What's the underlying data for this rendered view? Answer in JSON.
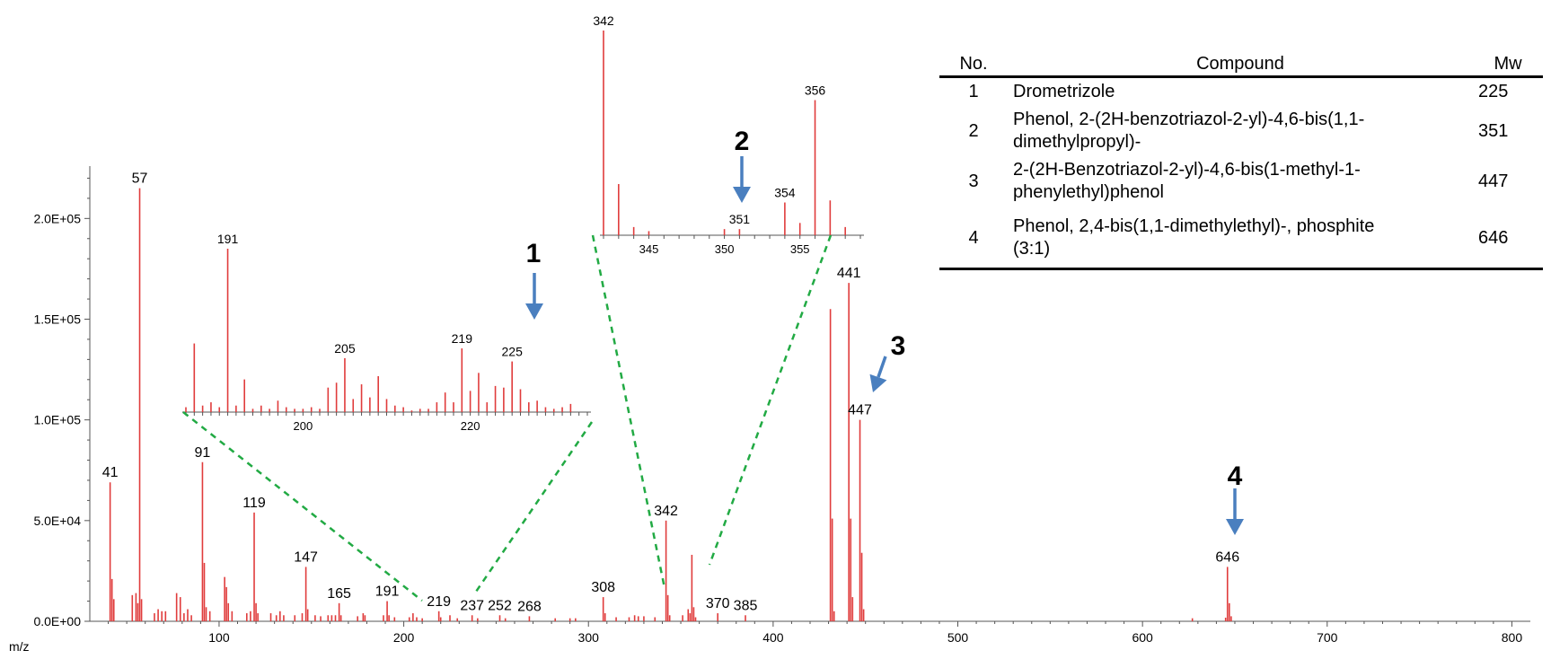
{
  "chart_data": [
    {
      "id": "main",
      "type": "bar",
      "xlabel": "m/z",
      "ylabel": "",
      "xlim": [
        30,
        810
      ],
      "ylim": [
        0,
        226000
      ],
      "x_ticks": [
        100,
        200,
        300,
        400,
        500,
        600,
        700,
        800
      ],
      "y_ticks": [
        0,
        50000,
        100000,
        150000,
        200000
      ],
      "y_tick_labels": [
        "0.0E+00",
        "5.0E+04",
        "1.0E+05",
        "1.5E+05",
        "2.0E+05"
      ],
      "color": "#e03c3c",
      "peaks": [
        [
          41,
          69000
        ],
        [
          42,
          21000
        ],
        [
          43,
          11000
        ],
        [
          53,
          13000
        ],
        [
          55,
          14000
        ],
        [
          56,
          9000
        ],
        [
          57,
          215000
        ],
        [
          58,
          11000
        ],
        [
          65,
          4000
        ],
        [
          67,
          6000
        ],
        [
          69,
          5000
        ],
        [
          71,
          5000
        ],
        [
          77,
          14000
        ],
        [
          79,
          12000
        ],
        [
          81,
          4000
        ],
        [
          83,
          6000
        ],
        [
          85,
          3000
        ],
        [
          91,
          79000
        ],
        [
          92,
          29000
        ],
        [
          93,
          7000
        ],
        [
          95,
          5000
        ],
        [
          103,
          22000
        ],
        [
          104,
          17000
        ],
        [
          105,
          9000
        ],
        [
          107,
          5000
        ],
        [
          115,
          4000
        ],
        [
          117,
          5000
        ],
        [
          119,
          54000
        ],
        [
          120,
          9000
        ],
        [
          121,
          4000
        ],
        [
          128,
          4000
        ],
        [
          131,
          3000
        ],
        [
          133,
          5000
        ],
        [
          135,
          3000
        ],
        [
          141,
          3000
        ],
        [
          145,
          4000
        ],
        [
          147,
          27000
        ],
        [
          148,
          6000
        ],
        [
          152,
          3000
        ],
        [
          155,
          2500
        ],
        [
          159,
          3000
        ],
        [
          161,
          3000
        ],
        [
          163,
          3000
        ],
        [
          165,
          9000
        ],
        [
          166,
          3000
        ],
        [
          175,
          2500
        ],
        [
          178,
          4000
        ],
        [
          179,
          3000
        ],
        [
          189,
          3000
        ],
        [
          191,
          10000
        ],
        [
          192,
          3000
        ],
        [
          195,
          2000
        ],
        [
          203,
          2000
        ],
        [
          205,
          4000
        ],
        [
          207,
          2000
        ],
        [
          210,
          1500
        ],
        [
          219,
          5000
        ],
        [
          220,
          2000
        ],
        [
          225,
          3000
        ],
        [
          229,
          1500
        ],
        [
          237,
          3000
        ],
        [
          240,
          1500
        ],
        [
          252,
          3000
        ],
        [
          255,
          1500
        ],
        [
          268,
          2500
        ],
        [
          282,
          1500
        ],
        [
          290,
          1500
        ],
        [
          293,
          1500
        ],
        [
          308,
          12000
        ],
        [
          309,
          4000
        ],
        [
          315,
          2000
        ],
        [
          322,
          2000
        ],
        [
          325,
          3000
        ],
        [
          327,
          2500
        ],
        [
          330,
          2500
        ],
        [
          336,
          2000
        ],
        [
          342,
          50000
        ],
        [
          343,
          13000
        ],
        [
          344,
          3000
        ],
        [
          351,
          3000
        ],
        [
          354,
          6000
        ],
        [
          355,
          4000
        ],
        [
          356,
          33000
        ],
        [
          357,
          7000
        ],
        [
          358,
          2000
        ],
        [
          370,
          4000
        ],
        [
          385,
          3000
        ],
        [
          431,
          155000
        ],
        [
          432,
          51000
        ],
        [
          433,
          5000
        ],
        [
          441,
          168000
        ],
        [
          442,
          51000
        ],
        [
          443,
          12000
        ],
        [
          447,
          100000
        ],
        [
          448,
          34000
        ],
        [
          449,
          6000
        ],
        [
          627,
          1500
        ],
        [
          645,
          1800
        ],
        [
          646,
          27000
        ],
        [
          647,
          9000
        ],
        [
          648,
          2500
        ]
      ],
      "peak_labels": [
        [
          "41",
          41,
          69000
        ],
        [
          "57",
          57,
          215000
        ],
        [
          "91",
          91,
          79000
        ],
        [
          "119",
          119,
          54000
        ],
        [
          "147",
          147,
          27000
        ],
        [
          "165",
          165,
          9000
        ],
        [
          "191",
          191,
          10000
        ],
        [
          "219",
          219,
          5000
        ],
        [
          "237",
          237,
          3000
        ],
        [
          "252",
          252,
          3000
        ],
        [
          "268",
          268,
          2500
        ],
        [
          "308",
          308,
          12000
        ],
        [
          "342",
          342,
          50000
        ],
        [
          "370",
          370,
          4000
        ],
        [
          "385",
          385,
          3000
        ],
        [
          "441",
          441,
          168000
        ],
        [
          "447",
          447,
          100000
        ],
        [
          "646",
          646,
          27000
        ]
      ]
    },
    {
      "id": "inset1",
      "type": "bar",
      "xlim": [
        186,
        234
      ],
      "ylim": [
        0,
        100
      ],
      "x_ticks": [
        200,
        220
      ],
      "color": "#e03c3c",
      "peaks": [
        [
          188,
          4
        ],
        [
          189,
          6
        ],
        [
          190,
          3
        ],
        [
          191,
          100
        ],
        [
          192,
          4
        ],
        [
          193,
          20
        ],
        [
          194,
          2
        ],
        [
          195,
          4
        ],
        [
          196,
          2
        ],
        [
          186,
          3
        ],
        [
          187,
          42
        ],
        [
          197,
          7
        ],
        [
          198,
          3
        ],
        [
          199,
          2
        ],
        [
          200,
          2
        ],
        [
          201,
          3
        ],
        [
          202,
          2
        ],
        [
          203,
          15
        ],
        [
          204,
          18
        ],
        [
          205,
          33
        ],
        [
          206,
          8
        ],
        [
          207,
          17
        ],
        [
          208,
          9
        ],
        [
          209,
          22
        ],
        [
          210,
          8
        ],
        [
          211,
          4
        ],
        [
          212,
          3
        ],
        [
          213,
          1
        ],
        [
          214,
          2
        ],
        [
          215,
          2
        ],
        [
          216,
          6
        ],
        [
          217,
          12
        ],
        [
          218,
          6
        ],
        [
          219,
          39
        ],
        [
          220,
          13
        ],
        [
          221,
          24
        ],
        [
          222,
          6
        ],
        [
          223,
          16
        ],
        [
          224,
          15
        ],
        [
          225,
          31
        ],
        [
          226,
          14
        ],
        [
          227,
          6
        ],
        [
          228,
          7
        ],
        [
          229,
          3
        ],
        [
          230,
          2
        ],
        [
          231,
          3
        ],
        [
          232,
          5
        ]
      ],
      "peak_labels": [
        [
          "191",
          191,
          100
        ],
        [
          "205",
          205,
          33
        ],
        [
          "219",
          219,
          39
        ],
        [
          "225",
          225,
          31
        ]
      ]
    },
    {
      "id": "inset2",
      "type": "bar",
      "xlim": [
        342,
        359
      ],
      "ylim": [
        0,
        100
      ],
      "x_ticks": [
        345,
        350,
        355
      ],
      "color": "#e03c3c",
      "peaks": [
        [
          342,
          100
        ],
        [
          343,
          25
        ],
        [
          344,
          4
        ],
        [
          345,
          2
        ],
        [
          350,
          3
        ],
        [
          351,
          3
        ],
        [
          354,
          16
        ],
        [
          355,
          6
        ],
        [
          356,
          66
        ],
        [
          357,
          17
        ],
        [
          358,
          4
        ]
      ],
      "peak_labels": [
        [
          "342",
          342,
          100
        ],
        [
          "351",
          351,
          3
        ],
        [
          "354",
          354,
          16
        ],
        [
          "356",
          356,
          66
        ]
      ]
    }
  ],
  "annotations": [
    "1",
    "2",
    "3",
    "4"
  ],
  "table": {
    "headers": [
      "No.",
      "Compound",
      "Mw"
    ],
    "rows": [
      {
        "no": "1",
        "line1": "Drometrizole",
        "line2": "",
        "mw": "225"
      },
      {
        "no": "2",
        "line1": "Phenol, 2-(2H-benzotriazol-2-yl)-4,6-bis(1,1-",
        "line2": "dimethylpropyl)-",
        "mw": "351"
      },
      {
        "no": "3",
        "line1": "2-(2H-Benzotriazol-2-yl)-4,6-bis(1-methyl-1-",
        "line2": "phenylethyl)phenol",
        "mw": "447"
      },
      {
        "no": "4",
        "line1": "Phenol, 2,4-bis(1,1-dimethylethyl)-, phosphite",
        "line2": "(3:1)",
        "mw": "646"
      }
    ]
  },
  "colors": {
    "peak": "#e03c3c",
    "arrow": "#4a7fbf",
    "zoom_guide": "#22aa44",
    "axis": "#555555"
  }
}
